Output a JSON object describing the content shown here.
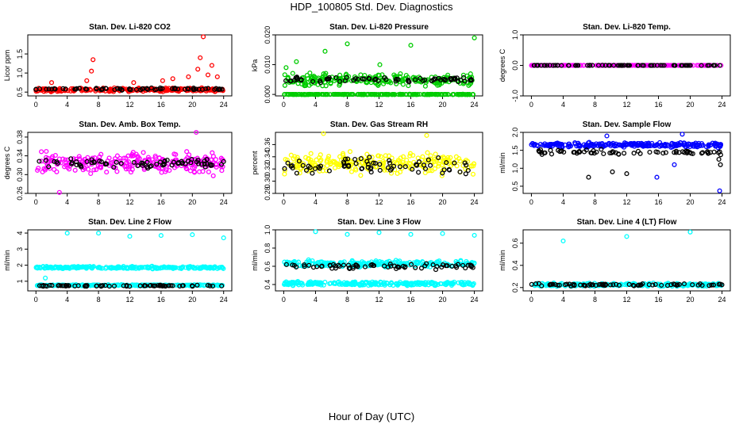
{
  "page": {
    "title": "HDP_100805  Std. Dev. Diagnostics",
    "xlabel": "Hour of Day (UTC)"
  },
  "chart_data": [
    {
      "type": "scatter",
      "title": "Stan. Dev. Li-820 CO2",
      "ylabel": "Licor ppm",
      "xlim": [
        0,
        24
      ],
      "xticks": [
        "0",
        "4",
        "8",
        "12",
        "16",
        "20",
        "24"
      ],
      "ylim": [
        0.4,
        2.0
      ],
      "yticks": [
        "0.5",
        "1.0",
        "1.5"
      ],
      "colors": {
        "main": "#ff0000",
        "secondary": "#000000"
      },
      "bands": [
        {
          "color": "main",
          "y_center": 0.56,
          "y_spread": 0.06
        },
        {
          "color": "secondary",
          "y_center": 0.58,
          "y_spread": 0.04
        }
      ],
      "extra_points": [
        {
          "x": 7.3,
          "y": 1.35,
          "color": "main"
        },
        {
          "x": 7.1,
          "y": 1.05,
          "color": "main"
        },
        {
          "x": 21.4,
          "y": 1.95,
          "color": "main"
        },
        {
          "x": 21.0,
          "y": 1.4,
          "color": "main"
        },
        {
          "x": 22.5,
          "y": 1.2,
          "color": "main"
        },
        {
          "x": 20.7,
          "y": 1.1,
          "color": "main"
        },
        {
          "x": 22.0,
          "y": 0.95,
          "color": "main"
        },
        {
          "x": 19.5,
          "y": 0.9,
          "color": "main"
        },
        {
          "x": 23.2,
          "y": 0.9,
          "color": "main"
        },
        {
          "x": 17.5,
          "y": 0.85,
          "color": "main"
        },
        {
          "x": 2.0,
          "y": 0.75,
          "color": "main"
        },
        {
          "x": 12.5,
          "y": 0.75,
          "color": "main"
        },
        {
          "x": 6.5,
          "y": 0.8,
          "color": "main"
        },
        {
          "x": 16.2,
          "y": 0.8,
          "color": "main"
        }
      ]
    },
    {
      "type": "scatter",
      "title": "Stan. Dev. Li-820 Pressure",
      "ylabel": "kPa",
      "xlim": [
        0,
        24
      ],
      "xticks": [
        "0",
        "4",
        "8",
        "12",
        "16",
        "20",
        "24"
      ],
      "ylim": [
        -0.0005,
        0.02
      ],
      "yticks": [
        "0.000",
        "0.010",
        "0.020"
      ],
      "colors": {
        "main": "#00cc00",
        "secondary": "#000000"
      },
      "bands": [
        {
          "color": "main",
          "y_center": 0.0048,
          "y_spread": 0.0028
        },
        {
          "color": "main",
          "y_center": 0.0,
          "y_spread": 0.0001
        },
        {
          "color": "secondary",
          "y_center": 0.005,
          "y_spread": 0.0012
        }
      ],
      "extra_points": [
        {
          "x": 8.0,
          "y": 0.017,
          "color": "main"
        },
        {
          "x": 24.0,
          "y": 0.019,
          "color": "main"
        },
        {
          "x": 16.0,
          "y": 0.0165,
          "color": "main"
        },
        {
          "x": 5.2,
          "y": 0.0145,
          "color": "main"
        },
        {
          "x": 1.6,
          "y": 0.011,
          "color": "main"
        },
        {
          "x": 0.3,
          "y": 0.009,
          "color": "main"
        },
        {
          "x": 12.1,
          "y": 0.01,
          "color": "main"
        }
      ]
    },
    {
      "type": "scatter",
      "title": "Stan. Dev. Li-820 Temp.",
      "ylabel": "degrees C",
      "xlim": [
        0,
        24
      ],
      "xticks": [
        "0",
        "4",
        "8",
        "12",
        "16",
        "20",
        "24"
      ],
      "ylim": [
        -1.0,
        1.0
      ],
      "yticks": [
        "-1.0",
        "0.0",
        "1.0"
      ],
      "colors": {
        "main": "#ff00ff",
        "secondary": "#000000"
      },
      "bands": [
        {
          "color": "main",
          "y_center": 0.0,
          "y_spread": 0.005
        },
        {
          "color": "secondary",
          "y_center": 0.0,
          "y_spread": 0.005
        }
      ],
      "extra_points": []
    },
    {
      "type": "scatter",
      "title": "Stan. Dev. Amb. Box Temp.",
      "ylabel": "degrees C",
      "xlim": [
        0,
        24
      ],
      "xticks": [
        "0",
        "4",
        "8",
        "12",
        "16",
        "20",
        "24"
      ],
      "ylim": [
        0.26,
        0.39
      ],
      "yticks": [
        "0.26",
        "0.30",
        "0.34",
        "0.38"
      ],
      "colors": {
        "main": "#ff00ff",
        "secondary": "#000000"
      },
      "bands": [
        {
          "color": "main",
          "y_center": 0.325,
          "y_spread": 0.03
        },
        {
          "color": "secondary",
          "y_center": 0.325,
          "y_spread": 0.015
        }
      ],
      "extra_points": [
        {
          "x": 20.5,
          "y": 0.39,
          "color": "main"
        },
        {
          "x": 3.0,
          "y": 0.262,
          "color": "main"
        }
      ]
    },
    {
      "type": "scatter",
      "title": "Stan. Dev. Gas Stream RH",
      "ylabel": "percent",
      "xlim": [
        0,
        24
      ],
      "xticks": [
        "0",
        "4",
        "8",
        "12",
        "16",
        "20",
        "24"
      ],
      "ylim": [
        0.28,
        0.38
      ],
      "yticks": [
        "0.28",
        "0.30",
        "0.32",
        "0.34",
        "0.36"
      ],
      "colors": {
        "main": "#ffff00",
        "secondary": "#000000"
      },
      "bands": [
        {
          "color": "main",
          "y_center": 0.33,
          "y_spread": 0.025
        },
        {
          "color": "secondary",
          "y_center": 0.325,
          "y_spread": 0.02
        }
      ],
      "extra_points": [
        {
          "x": 5.0,
          "y": 0.378,
          "color": "main"
        },
        {
          "x": 18.0,
          "y": 0.375,
          "color": "main"
        }
      ]
    },
    {
      "type": "scatter",
      "title": "Stan. Dev. Sample Flow",
      "ylabel": "ml/min",
      "xlim": [
        0,
        24
      ],
      "xticks": [
        "0",
        "4",
        "8",
        "12",
        "16",
        "20",
        "24"
      ],
      "ylim": [
        0.3,
        2.0
      ],
      "yticks": [
        "0.5",
        "1.0",
        "1.5",
        "2.0"
      ],
      "colors": {
        "main": "#0000ff",
        "secondary": "#000000"
      },
      "bands": [
        {
          "color": "main",
          "y_center": 1.65,
          "y_spread": 0.09
        },
        {
          "color": "secondary",
          "y_center": 1.45,
          "y_spread": 0.1
        }
      ],
      "extra_points": [
        {
          "x": 7.2,
          "y": 0.75,
          "color": "secondary"
        },
        {
          "x": 10.2,
          "y": 0.9,
          "color": "secondary"
        },
        {
          "x": 12.0,
          "y": 0.85,
          "color": "secondary"
        },
        {
          "x": 15.8,
          "y": 0.75,
          "color": "main"
        },
        {
          "x": 18.0,
          "y": 1.1,
          "color": "main"
        },
        {
          "x": 23.7,
          "y": 0.37,
          "color": "main"
        },
        {
          "x": 23.8,
          "y": 1.1,
          "color": "secondary"
        },
        {
          "x": 23.6,
          "y": 1.25,
          "color": "secondary"
        },
        {
          "x": 19.0,
          "y": 1.95,
          "color": "main"
        },
        {
          "x": 9.5,
          "y": 1.9,
          "color": "main"
        }
      ]
    },
    {
      "type": "scatter",
      "title": "Stan. Dev. Line 2 Flow",
      "ylabel": "ml/min",
      "xlim": [
        0,
        24
      ],
      "xticks": [
        "0",
        "4",
        "8",
        "12",
        "16",
        "20",
        "24"
      ],
      "ylim": [
        0.4,
        4.2
      ],
      "yticks": [
        "1",
        "2",
        "3",
        "4"
      ],
      "colors": {
        "main": "#00ffff",
        "secondary": "#000000"
      },
      "bands": [
        {
          "color": "main",
          "y_center": 1.85,
          "y_spread": 0.1
        },
        {
          "color": "main",
          "y_center": 0.75,
          "y_spread": 0.05
        },
        {
          "color": "secondary",
          "y_center": 0.72,
          "y_spread": 0.05
        }
      ],
      "extra_points": [
        {
          "x": 4.0,
          "y": 4.0,
          "color": "main"
        },
        {
          "x": 8.0,
          "y": 4.0,
          "color": "main"
        },
        {
          "x": 12.0,
          "y": 3.8,
          "color": "main"
        },
        {
          "x": 16.0,
          "y": 3.85,
          "color": "main"
        },
        {
          "x": 20.0,
          "y": 3.9,
          "color": "main"
        },
        {
          "x": 24.0,
          "y": 3.7,
          "color": "main"
        },
        {
          "x": 1.2,
          "y": 1.2,
          "color": "main"
        }
      ]
    },
    {
      "type": "scatter",
      "title": "Stan. Dev. Line 3 Flow",
      "ylabel": "ml/min",
      "xlim": [
        0,
        24
      ],
      "xticks": [
        "0",
        "4",
        "8",
        "12",
        "16",
        "20",
        "24"
      ],
      "ylim": [
        0.33,
        1.0
      ],
      "yticks": [
        "0.4",
        "0.6",
        "0.8",
        "1.0"
      ],
      "colors": {
        "main": "#00ffff",
        "secondary": "#000000"
      },
      "bands": [
        {
          "color": "main",
          "y_center": 0.63,
          "y_spread": 0.05
        },
        {
          "color": "main",
          "y_center": 0.41,
          "y_spread": 0.03
        },
        {
          "color": "secondary",
          "y_center": 0.6,
          "y_spread": 0.04
        }
      ],
      "extra_points": [
        {
          "x": 4.0,
          "y": 0.98,
          "color": "main"
        },
        {
          "x": 8.0,
          "y": 0.95,
          "color": "main"
        },
        {
          "x": 12.0,
          "y": 0.97,
          "color": "main"
        },
        {
          "x": 16.0,
          "y": 0.95,
          "color": "main"
        },
        {
          "x": 20.0,
          "y": 0.96,
          "color": "main"
        },
        {
          "x": 24.0,
          "y": 0.94,
          "color": "main"
        }
      ]
    },
    {
      "type": "scatter",
      "title": "Stan. Dev. Line 4 (LT) Flow",
      "ylabel": "ml/min",
      "xlim": [
        0,
        24
      ],
      "xticks": [
        "0",
        "4",
        "8",
        "12",
        "16",
        "20",
        "24"
      ],
      "ylim": [
        0.17,
        0.72
      ],
      "yticks": [
        "0.2",
        "0.4",
        "0.6"
      ],
      "colors": {
        "main": "#00ffff",
        "secondary": "#000000"
      },
      "bands": [
        {
          "color": "main",
          "y_center": 0.225,
          "y_spread": 0.02
        },
        {
          "color": "secondary",
          "y_center": 0.225,
          "y_spread": 0.015
        }
      ],
      "extra_points": [
        {
          "x": 4.0,
          "y": 0.62,
          "color": "main"
        },
        {
          "x": 12.0,
          "y": 0.66,
          "color": "main"
        },
        {
          "x": 20.0,
          "y": 0.7,
          "color": "main"
        }
      ]
    }
  ]
}
